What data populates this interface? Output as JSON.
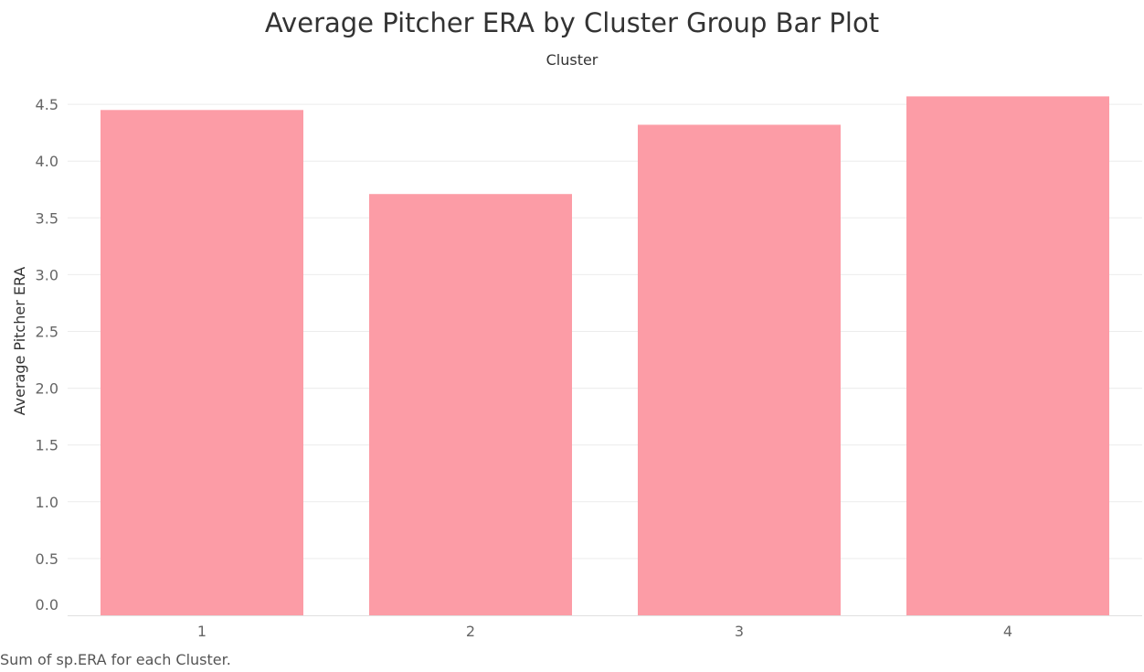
{
  "chart_data": {
    "type": "bar",
    "title": "Average Pitcher ERA by Cluster Group Bar Plot",
    "column_header": "Cluster",
    "xlabel": "",
    "ylabel": "Average Pitcher ERA",
    "categories": [
      "1",
      "2",
      "3",
      "4"
    ],
    "values": [
      4.45,
      3.71,
      4.32,
      4.57
    ],
    "ylim": [
      0,
      4.6
    ],
    "yticks": [
      0.0,
      0.5,
      1.0,
      1.5,
      2.0,
      2.5,
      3.0,
      3.5,
      4.0,
      4.5
    ],
    "ytick_labels": [
      "0.0",
      "0.5",
      "1.0",
      "1.5",
      "2.0",
      "2.5",
      "3.0",
      "3.5",
      "4.0",
      "4.5"
    ],
    "grid": true,
    "bar_color": "#fc9ca6",
    "gridline_color": "#ececec"
  },
  "caption": "Sum of sp.ERA for each Cluster."
}
